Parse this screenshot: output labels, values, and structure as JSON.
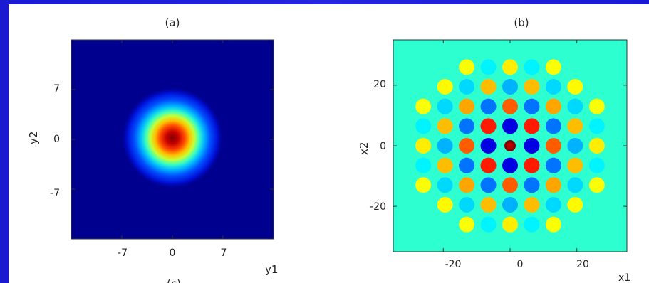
{
  "chart_data": [
    {
      "type": "heatmap",
      "title": "(a)",
      "xlabel": "y1",
      "ylabel": "y2",
      "xticks": [
        "-7",
        "0",
        "7"
      ],
      "yticks": [
        "7",
        "0",
        "-7"
      ],
      "xlim": [
        -14,
        14
      ],
      "ylim": [
        -14,
        14
      ],
      "colormap": "jet",
      "pattern": "single central gaussian peak at (0,0)",
      "peak": {
        "x": 0,
        "y": 0,
        "value": 1.0
      },
      "background_color": "#00008f"
    },
    {
      "type": "heatmap",
      "title": "(b)",
      "xlabel": "x1",
      "ylabel": "x2",
      "xticks": [
        "-20",
        "0",
        "20"
      ],
      "yticks": [
        "20",
        "0",
        "-20"
      ],
      "xlim": [
        -35,
        35
      ],
      "ylim": [
        -35,
        35
      ],
      "colormap": "jet",
      "pattern": "oscillating lattice of spots, spacing ~6.5, decaying from center",
      "grid_spacing": 6.5,
      "center_value": 1.0,
      "background_color": "#2dffd0"
    }
  ],
  "extra_label": "(c)"
}
